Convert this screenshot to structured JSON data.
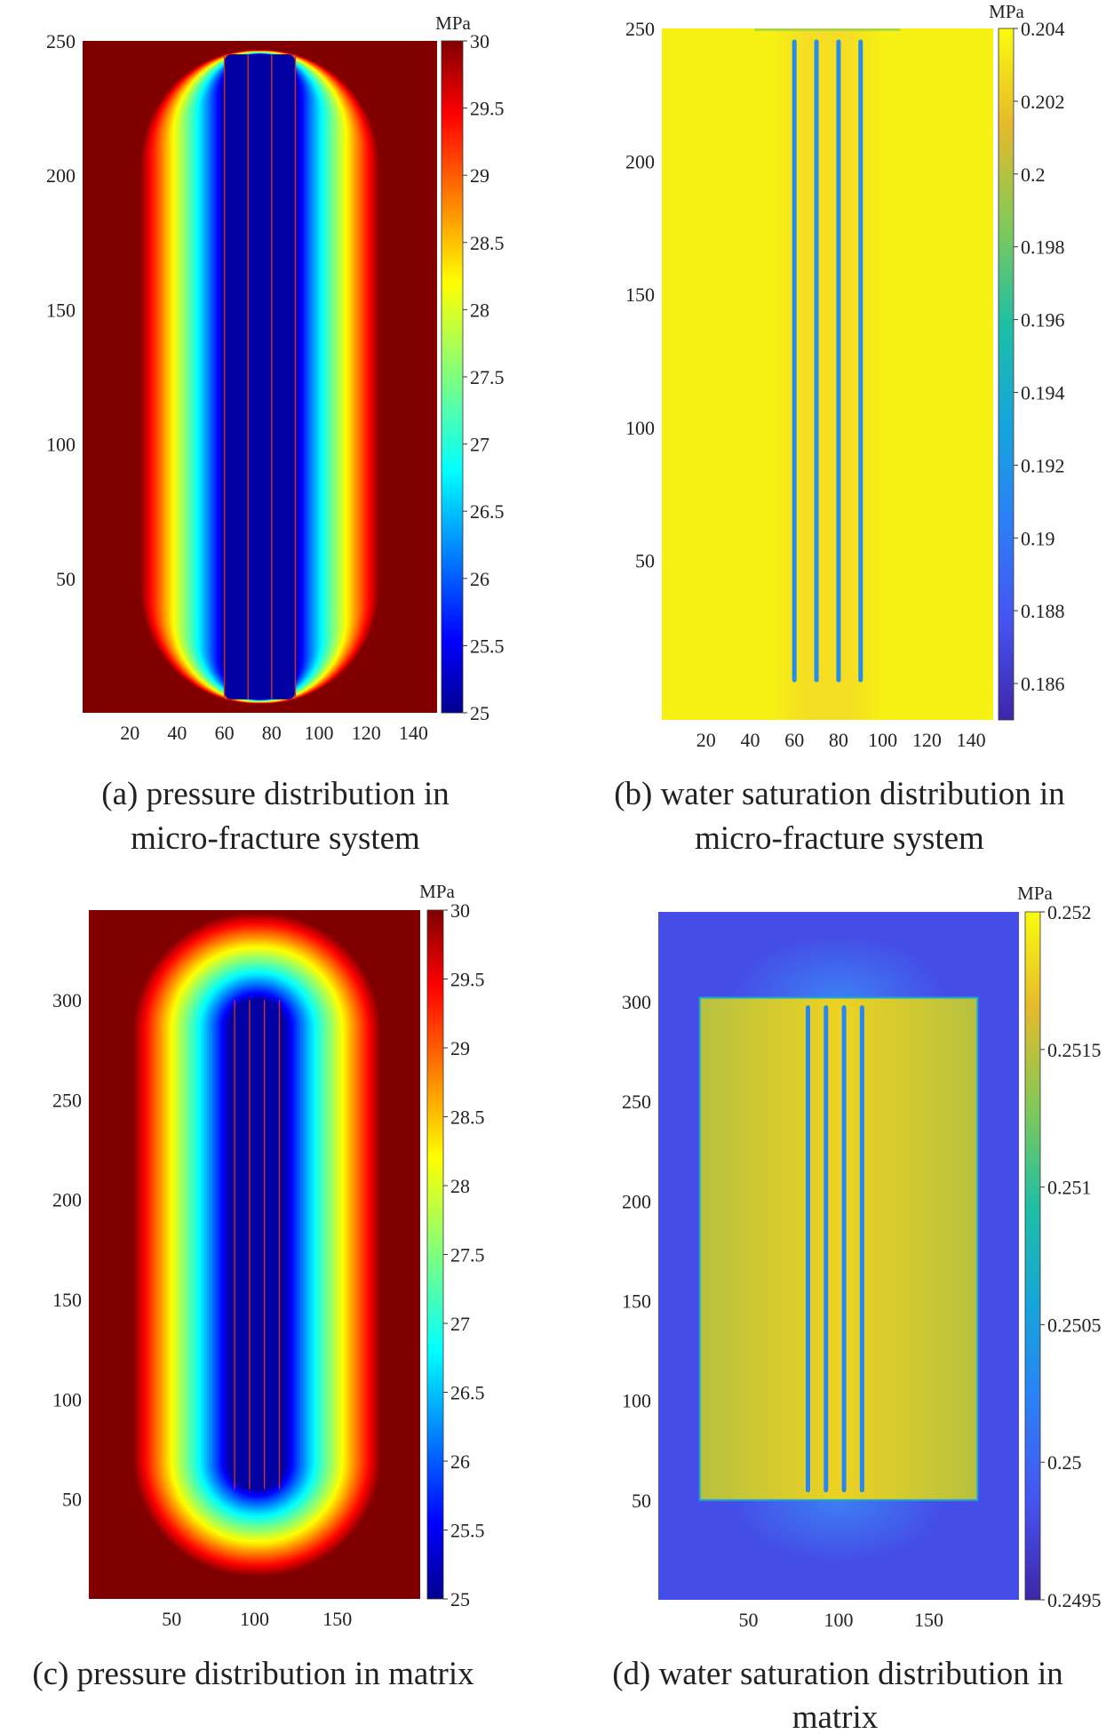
{
  "figure": {
    "panels": [
      {
        "id": "a",
        "caption_lines": [
          "(a) pressure distribution in",
          "micro-fracture system"
        ],
        "chart_data": {
          "type": "heatmap",
          "colormap": "jet",
          "quantity": "pressure",
          "xlim": [
            0,
            150
          ],
          "ylim": [
            0,
            250
          ],
          "x_ticks": [
            20,
            40,
            60,
            80,
            100,
            120,
            140
          ],
          "y_ticks": [
            50,
            100,
            150,
            200,
            250
          ],
          "colorbar": {
            "unit": "MPa",
            "min": 25,
            "max": 30,
            "ticks": [
              25,
              25.5,
              26,
              26.5,
              27,
              27.5,
              28,
              28.5,
              29,
              29.5,
              30
            ]
          },
          "fractures_x": [
            60,
            70,
            80,
            90
          ],
          "fracture_y_range": [
            5,
            245
          ],
          "low_zone": {
            "x": [
              60,
              90
            ],
            "y": [
              5,
              245
            ]
          },
          "background_value": 30
        }
      },
      {
        "id": "b",
        "caption_lines": [
          "(b) water saturation distribution in",
          "micro-fracture system"
        ],
        "chart_data": {
          "type": "heatmap",
          "colormap": "parula",
          "quantity": "water saturation",
          "xlim": [
            0,
            150
          ],
          "ylim": [
            -10,
            250
          ],
          "x_ticks": [
            20,
            40,
            60,
            80,
            100,
            120,
            140
          ],
          "y_ticks": [
            50,
            100,
            150,
            200,
            250
          ],
          "colorbar": {
            "unit": "MPa",
            "min": 0.185,
            "max": 0.204,
            "ticks": [
              0.186,
              0.188,
              0.19,
              0.192,
              0.194,
              0.196,
              0.198,
              0.2,
              0.202,
              0.204
            ]
          },
          "fractures_x": [
            60,
            70,
            80,
            90
          ],
          "fracture_y_range": [
            5,
            245
          ],
          "background_value": 0.2036,
          "fracture_value": 0.1915
        }
      },
      {
        "id": "c",
        "caption_lines": [
          "(c) pressure distribution in matrix"
        ],
        "chart_data": {
          "type": "heatmap",
          "colormap": "jet",
          "quantity": "pressure",
          "xlim": [
            0,
            200
          ],
          "ylim": [
            0,
            345
          ],
          "x_ticks": [
            50,
            100,
            150
          ],
          "y_ticks": [
            50,
            100,
            150,
            200,
            250,
            300
          ],
          "colorbar": {
            "unit": "MPa",
            "min": 25,
            "max": 30,
            "ticks": [
              25,
              25.5,
              26,
              26.5,
              27,
              27.5,
              28,
              28.5,
              29,
              29.5,
              30
            ]
          },
          "fractures_x": [
            88,
            97,
            106,
            115
          ],
          "fracture_y_range": [
            55,
            300
          ],
          "low_zone": {
            "x": [
              85,
              118
            ],
            "y": [
              55,
              300
            ]
          },
          "background_value": 30
        }
      },
      {
        "id": "d",
        "caption_lines": [
          "(d) water saturation distribution in",
          "matrix"
        ],
        "chart_data": {
          "type": "heatmap",
          "colormap": "parula",
          "quantity": "water saturation",
          "xlim": [
            0,
            200
          ],
          "ylim": [
            0,
            345
          ],
          "x_ticks": [
            50,
            100,
            150
          ],
          "y_ticks": [
            50,
            100,
            150,
            200,
            250,
            300
          ],
          "colorbar": {
            "unit": "MPa",
            "min": 0.2495,
            "max": 0.252,
            "ticks": [
              0.2495,
              0.25,
              0.2505,
              0.251,
              0.2515,
              0.252
            ]
          },
          "fractures_x": [
            83,
            93,
            103,
            113
          ],
          "fracture_y_range": [
            55,
            297
          ],
          "inner_region": {
            "x": [
              23,
              177
            ],
            "y": [
              50,
              302
            ]
          },
          "background_value": 0.2498,
          "inner_value": 0.2516,
          "fracture_value": 0.2503
        }
      }
    ]
  }
}
